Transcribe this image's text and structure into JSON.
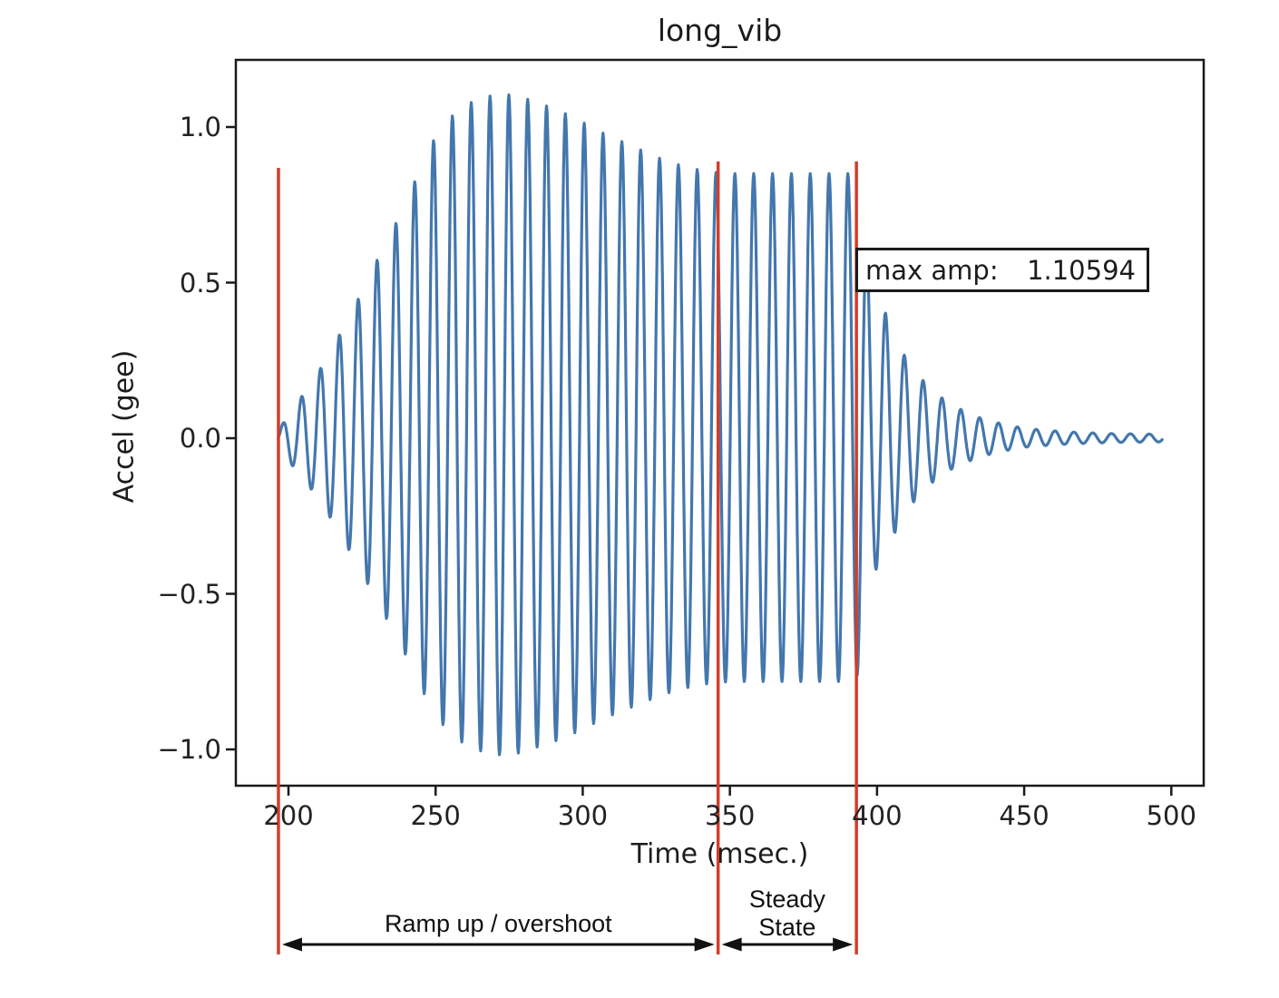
{
  "figure": {
    "title": "long_vib",
    "x_axis": {
      "label": "Time (msec.)",
      "ticks": [
        200,
        250,
        300,
        350,
        400,
        450,
        500
      ]
    },
    "y_axis": {
      "label": "Accel (gee)",
      "ticks": [
        {
          "value": 1.0,
          "label": "1.0"
        },
        {
          "value": 0.5,
          "label": "0.5"
        },
        {
          "value": 0.0,
          "label": "0.0"
        },
        {
          "value": -0.5,
          "label": "−0.5"
        },
        {
          "value": -1.0,
          "label": "−1.0"
        }
      ]
    },
    "max_amp_box": {
      "label": "max amp:",
      "value": "1.10594"
    }
  },
  "annotations": {
    "ramp_label": "Ramp up / overshoot",
    "steady_line1": "Steady",
    "steady_line2": "State"
  },
  "colors": {
    "waveform": "#4377ad",
    "region_line": "#d03e2b",
    "arrow": "#111111",
    "axis": "#1a1a1a"
  },
  "chart_data": {
    "type": "line",
    "title": "long_vib",
    "xlabel": "Time (msec.)",
    "ylabel": "Accel (gee)",
    "xlim": [
      182,
      511
    ],
    "ylim": [
      -1.12,
      1.21
    ],
    "xticks": [
      200,
      250,
      300,
      350,
      400,
      450,
      500
    ],
    "yticks": [
      1.0,
      0.5,
      0.0,
      -0.5,
      -1.0
    ],
    "grid": false,
    "max_amp": 1.10594,
    "signal": {
      "description": "damped vibration acceleration trace: ramp up with overshoot, steady state, then exponential decay",
      "start_ms": 196.5,
      "end_ms": 497,
      "period_ms": 6.4,
      "negative_asymmetry": 0.92,
      "envelope_points": [
        [
          196.5,
          0.02
        ],
        [
          200,
          0.08
        ],
        [
          205,
          0.14
        ],
        [
          210,
          0.21
        ],
        [
          215,
          0.29
        ],
        [
          220,
          0.38
        ],
        [
          225,
          0.47
        ],
        [
          230,
          0.57
        ],
        [
          235,
          0.66
        ],
        [
          240,
          0.76
        ],
        [
          245,
          0.87
        ],
        [
          250,
          0.97
        ],
        [
          255,
          1.03
        ],
        [
          260,
          1.07
        ],
        [
          266,
          1.095
        ],
        [
          272,
          1.106
        ],
        [
          278,
          1.1
        ],
        [
          284,
          1.08
        ],
        [
          290,
          1.06
        ],
        [
          296,
          1.035
        ],
        [
          302,
          1.005
        ],
        [
          308,
          0.975
        ],
        [
          314,
          0.95
        ],
        [
          320,
          0.925
        ],
        [
          326,
          0.9
        ],
        [
          332,
          0.88
        ],
        [
          338,
          0.865
        ],
        [
          344,
          0.855
        ],
        [
          350,
          0.85
        ],
        [
          390,
          0.85
        ],
        [
          393,
          0.85
        ],
        [
          396,
          0.62
        ],
        [
          399,
          0.47
        ],
        [
          403,
          0.4
        ],
        [
          408,
          0.285
        ],
        [
          413,
          0.215
        ],
        [
          418,
          0.16
        ],
        [
          424,
          0.115
        ],
        [
          430,
          0.085
        ],
        [
          436,
          0.062
        ],
        [
          443,
          0.045
        ],
        [
          450,
          0.032
        ],
        [
          458,
          0.025
        ],
        [
          468,
          0.019
        ],
        [
          480,
          0.015
        ],
        [
          497,
          0.013
        ]
      ]
    },
    "regions": [
      {
        "name": "Ramp up / overshoot",
        "from_ms": 196.6,
        "to_ms": 346.0
      },
      {
        "name": "Steady State",
        "from_ms": 346.0,
        "to_ms": 393.0
      }
    ]
  }
}
